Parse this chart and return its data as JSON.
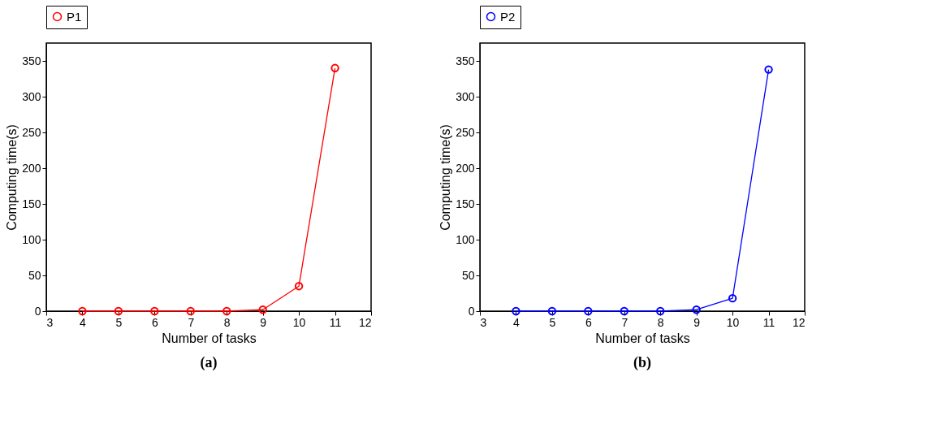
{
  "chart_data": [
    {
      "type": "line",
      "x": [
        4,
        5,
        6,
        7,
        8,
        9,
        10,
        11
      ],
      "xlabel": "Number of tasks",
      "ylabel": "Computing time(s)",
      "xlim": [
        3,
        12
      ],
      "xticks": [
        3,
        4,
        5,
        6,
        7,
        8,
        9,
        10,
        11,
        12
      ],
      "ylim": [
        0,
        375
      ],
      "yticks": [
        0,
        50,
        100,
        150,
        200,
        250,
        300,
        350
      ],
      "marker": "circle",
      "legend": "top",
      "grid": false,
      "annotations": [
        "(a)"
      ],
      "series": [
        {
          "name": "P1",
          "color": "#ff0000",
          "values": [
            0,
            0,
            0,
            0,
            0,
            2,
            35,
            340
          ]
        }
      ]
    },
    {
      "type": "line",
      "x": [
        4,
        5,
        6,
        7,
        8,
        9,
        10,
        11
      ],
      "xlabel": "Number of tasks",
      "ylabel": "Computing time(s)",
      "xlim": [
        3,
        12
      ],
      "xticks": [
        3,
        4,
        5,
        6,
        7,
        8,
        9,
        10,
        11,
        12
      ],
      "ylim": [
        0,
        375
      ],
      "yticks": [
        0,
        50,
        100,
        150,
        200,
        250,
        300,
        350
      ],
      "marker": "circle",
      "legend": "top",
      "grid": false,
      "annotations": [
        "(b)"
      ],
      "series": [
        {
          "name": "P2",
          "color": "#0000ff",
          "values": [
            0,
            0,
            0,
            0,
            0,
            2,
            18,
            338
          ]
        }
      ]
    }
  ]
}
